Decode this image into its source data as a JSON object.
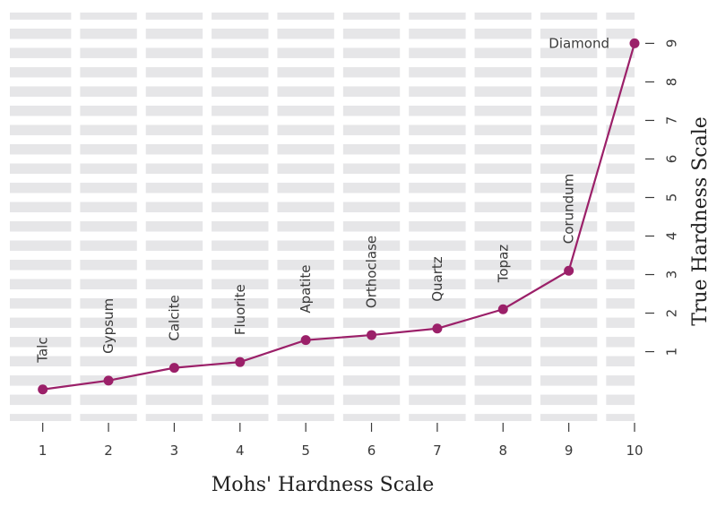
{
  "chart_data": {
    "type": "line",
    "title": "",
    "xlabel": "Mohs' Hardness Scale",
    "ylabel": "True Hardness Scale",
    "x": [
      1,
      2,
      3,
      4,
      5,
      6,
      7,
      8,
      9,
      10
    ],
    "xticks": [
      "1",
      "2",
      "3",
      "4",
      "5",
      "6",
      "7",
      "8",
      "9",
      "10"
    ],
    "yticks": [
      "1",
      "2",
      "3",
      "4",
      "5",
      "6",
      "7",
      "8",
      "9"
    ],
    "xlim": [
      0.5,
      10
    ],
    "ylim": [
      -0.8,
      9.8
    ],
    "y_axis_side": "right",
    "grid": true,
    "series": [
      {
        "values": [
          0.02,
          0.25,
          0.58,
          0.73,
          1.3,
          1.43,
          1.6,
          2.1,
          3.1,
          9.0
        ],
        "labels": [
          "Talc",
          "Gypsum",
          "Calcite",
          "Fluorite",
          "Apatite",
          "Orthoclase",
          "Quartz",
          "Topaz",
          "Corundum",
          "Diamond"
        ]
      }
    ],
    "colors": {
      "line": "#9b2069",
      "panel": "#e6e6e8",
      "grid": "#ffffff",
      "tick": "#3a3a3a"
    }
  }
}
